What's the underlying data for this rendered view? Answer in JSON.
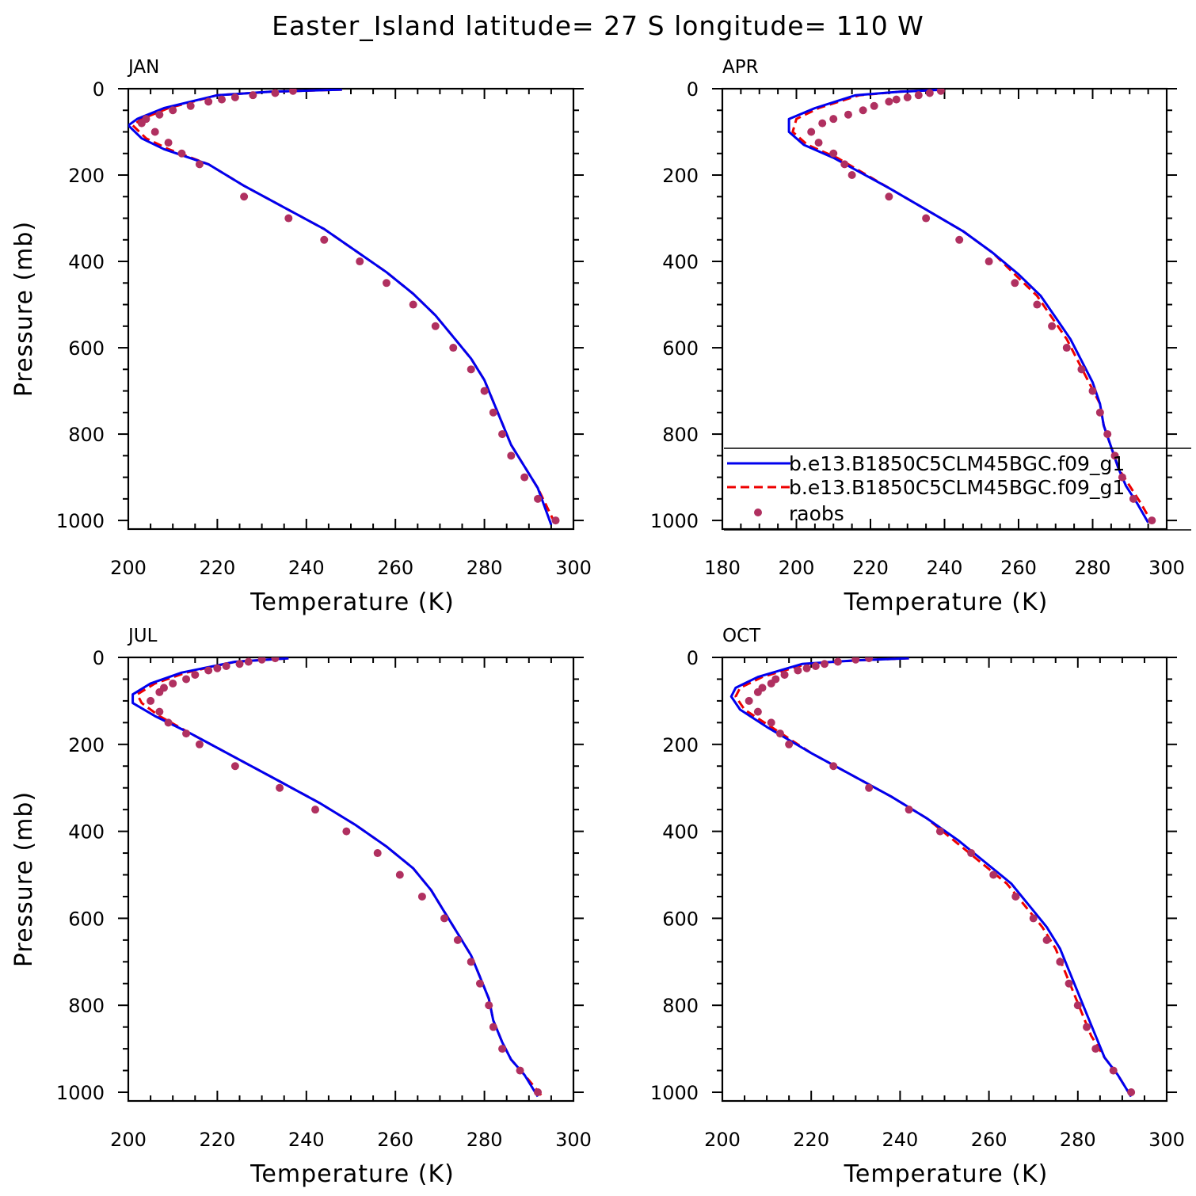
{
  "title": "Easter_Island  latitude= 27 S longitude= 110 W",
  "colors": {
    "model1": "#0000ee",
    "model2": "#ee0000",
    "raobs": "#b03060"
  },
  "legend": {
    "location": "APR panel, lower part",
    "entries": [
      {
        "label": "b.e13.B1850C5CLM45BGC.f09_g1",
        "style": "solid",
        "color": "#0000ee"
      },
      {
        "label": "b.e13.B1850C5CLM45BGC.f09_g1",
        "style": "dashed",
        "color": "#ee0000"
      },
      {
        "label": "raobs",
        "style": "marker",
        "color": "#b03060"
      }
    ]
  },
  "chart_data": [
    {
      "type": "line",
      "title": "JAN",
      "xlabel": "Temperature (K)",
      "ylabel": "Pressure (mb)",
      "xlim": [
        200,
        300
      ],
      "ylim": [
        1020,
        0
      ],
      "xticks": [
        200,
        220,
        240,
        260,
        280,
        300
      ],
      "yticks": [
        0,
        200,
        400,
        600,
        800,
        1000
      ],
      "series": [
        {
          "name": "b.e13.B1850C5CLM45BGC.f09_g1",
          "style": "solid",
          "x": [
            248,
            232,
            220,
            208,
            202,
            200,
            203,
            208,
            218,
            226,
            235,
            244,
            251,
            258,
            264,
            269,
            273,
            277,
            280,
            282,
            284,
            286,
            289,
            292,
            295
          ],
          "y": [
            2,
            7,
            15,
            45,
            70,
            85,
            115,
            140,
            175,
            225,
            275,
            325,
            375,
            425,
            475,
            525,
            575,
            625,
            675,
            725,
            775,
            825,
            875,
            925,
            1010
          ]
        },
        {
          "name": "b.e13.B1850C5CLM45BGC.f09_g1",
          "style": "dashed",
          "x": [
            248,
            232,
            220,
            209,
            203,
            201,
            204,
            209,
            218,
            226,
            235,
            244,
            251,
            258,
            264,
            269,
            273,
            277,
            280,
            282,
            284,
            286,
            289,
            292,
            296
          ],
          "y": [
            2,
            7,
            15,
            45,
            70,
            85,
            115,
            140,
            175,
            225,
            275,
            325,
            375,
            425,
            475,
            525,
            575,
            625,
            675,
            725,
            775,
            825,
            875,
            925,
            1010
          ]
        },
        {
          "name": "raobs",
          "style": "marker",
          "x": [
            237,
            233,
            228,
            224,
            221,
            218,
            214,
            210,
            207,
            204,
            203,
            206,
            209,
            212,
            216,
            226,
            236,
            244,
            252,
            258,
            264,
            269,
            273,
            277,
            280,
            282,
            284,
            286,
            289,
            292,
            296
          ],
          "y": [
            5,
            10,
            15,
            20,
            25,
            30,
            40,
            50,
            60,
            70,
            80,
            100,
            125,
            150,
            175,
            250,
            300,
            350,
            400,
            450,
            500,
            550,
            600,
            650,
            700,
            750,
            800,
            850,
            900,
            950,
            1000
          ]
        }
      ]
    },
    {
      "type": "line",
      "title": "APR",
      "xlabel": "Temperature (K)",
      "ylabel": "",
      "xlim": [
        180,
        300
      ],
      "ylim": [
        1020,
        0
      ],
      "xticks": [
        180,
        200,
        220,
        240,
        260,
        280,
        300
      ],
      "yticks": [
        0,
        200,
        400,
        600,
        800,
        1000
      ],
      "series": [
        {
          "name": "b.e13.B1850C5CLM45BGC.f09_g1",
          "style": "solid",
          "x": [
            240,
            228,
            216,
            205,
            198,
            198,
            202,
            210,
            225,
            235,
            245,
            253,
            260,
            266,
            270,
            274,
            277,
            280,
            282,
            283,
            285,
            287,
            289,
            292,
            295
          ],
          "y": [
            2,
            7,
            15,
            45,
            70,
            100,
            130,
            160,
            230,
            280,
            330,
            380,
            430,
            480,
            530,
            580,
            630,
            680,
            730,
            780,
            830,
            880,
            920,
            960,
            1005
          ]
        },
        {
          "name": "b.e13.B1850C5CLM45BGC.f09_g1",
          "style": "dashed",
          "x": [
            240,
            228,
            217,
            206,
            200,
            199,
            203,
            211,
            225,
            235,
            245,
            253,
            259,
            265,
            269,
            273,
            276,
            279,
            282,
            283,
            285,
            287,
            290,
            293,
            296
          ],
          "y": [
            2,
            7,
            15,
            45,
            70,
            100,
            130,
            160,
            230,
            280,
            330,
            380,
            430,
            480,
            530,
            580,
            630,
            680,
            730,
            780,
            830,
            880,
            920,
            960,
            1005
          ]
        },
        {
          "name": "raobs",
          "style": "marker",
          "x": [
            239,
            236,
            233,
            230,
            227,
            225,
            221,
            218,
            214,
            210,
            207,
            204,
            206,
            210,
            213,
            215,
            225,
            235,
            244,
            252,
            259,
            265,
            269,
            273,
            277,
            280,
            282,
            284,
            286,
            288,
            291,
            296
          ],
          "y": [
            5,
            10,
            15,
            20,
            25,
            30,
            40,
            50,
            60,
            70,
            80,
            100,
            125,
            150,
            175,
            200,
            250,
            300,
            350,
            400,
            450,
            500,
            550,
            600,
            650,
            700,
            750,
            800,
            850,
            900,
            950,
            1000
          ]
        }
      ]
    },
    {
      "type": "line",
      "title": "JUL",
      "xlabel": "Temperature (K)",
      "ylabel": "Pressure (mb)",
      "xlim": [
        200,
        300
      ],
      "ylim": [
        1020,
        0
      ],
      "xticks": [
        200,
        220,
        240,
        260,
        280,
        300
      ],
      "yticks": [
        0,
        200,
        400,
        600,
        800,
        1000
      ],
      "series": [
        {
          "name": "b.e13.B1850C5CLM45BGC.f09_g1",
          "style": "solid",
          "x": [
            236,
            224,
            212,
            205,
            201,
            201,
            206,
            214,
            224,
            234,
            243,
            251,
            258,
            264,
            268,
            271,
            274,
            277,
            279,
            281,
            282,
            284,
            286,
            289,
            292
          ],
          "y": [
            2,
            10,
            35,
            60,
            85,
            105,
            135,
            175,
            230,
            285,
            335,
            385,
            435,
            485,
            535,
            585,
            635,
            685,
            735,
            785,
            835,
            885,
            925,
            960,
            1010
          ]
        },
        {
          "name": "b.e13.B1850C5CLM45BGC.f09_g1",
          "style": "dashed",
          "x": [
            236,
            224,
            213,
            206,
            202,
            203,
            207,
            214,
            224,
            234,
            243,
            251,
            258,
            264,
            268,
            271,
            274,
            277,
            279,
            281,
            282,
            284,
            286,
            289,
            293
          ],
          "y": [
            2,
            10,
            35,
            60,
            85,
            105,
            135,
            175,
            230,
            285,
            335,
            385,
            435,
            485,
            535,
            585,
            635,
            685,
            735,
            785,
            835,
            885,
            925,
            960,
            1010
          ]
        },
        {
          "name": "raobs",
          "style": "marker",
          "x": [
            233,
            230,
            227,
            225,
            222,
            220,
            218,
            215,
            213,
            210,
            208,
            207,
            205,
            207,
            209,
            213,
            216,
            224,
            234,
            242,
            249,
            256,
            261,
            266,
            271,
            274,
            277,
            279,
            281,
            282,
            284,
            288,
            292
          ],
          "y": [
            2,
            5,
            10,
            15,
            20,
            25,
            30,
            40,
            50,
            60,
            70,
            80,
            100,
            125,
            150,
            175,
            200,
            250,
            300,
            350,
            400,
            450,
            500,
            550,
            600,
            650,
            700,
            750,
            800,
            850,
            900,
            950,
            1000
          ]
        }
      ]
    },
    {
      "type": "line",
      "title": "OCT",
      "xlabel": "Temperature (K)",
      "ylabel": "",
      "xlim": [
        200,
        300
      ],
      "ylim": [
        1020,
        0
      ],
      "xticks": [
        200,
        220,
        240,
        260,
        280,
        300
      ],
      "yticks": [
        0,
        200,
        400,
        600,
        800,
        1000
      ],
      "series": [
        {
          "name": "b.e13.B1850C5CLM45BGC.f09_g1",
          "style": "solid",
          "x": [
            242,
            230,
            218,
            208,
            203,
            202,
            204,
            210,
            220,
            229,
            238,
            246,
            253,
            259,
            265,
            269,
            273,
            276,
            278,
            280,
            282,
            284,
            286,
            289,
            292
          ],
          "y": [
            2,
            7,
            15,
            45,
            70,
            90,
            120,
            160,
            220,
            270,
            320,
            370,
            420,
            470,
            520,
            570,
            620,
            670,
            720,
            770,
            820,
            870,
            920,
            960,
            1010
          ]
        },
        {
          "name": "b.e13.B1850C5CLM45BGC.f09_g1",
          "style": "dashed",
          "x": [
            242,
            230,
            219,
            209,
            204,
            203,
            205,
            211,
            220,
            229,
            238,
            246,
            252,
            258,
            264,
            268,
            272,
            275,
            277,
            279,
            281,
            283,
            286,
            289,
            292
          ],
          "y": [
            2,
            7,
            15,
            45,
            70,
            90,
            120,
            160,
            220,
            270,
            320,
            370,
            420,
            470,
            520,
            570,
            620,
            670,
            720,
            770,
            820,
            870,
            920,
            960,
            1010
          ]
        },
        {
          "name": "raobs",
          "style": "marker",
          "x": [
            233,
            230,
            226,
            223,
            221,
            219,
            217,
            214,
            212,
            211,
            209,
            208,
            206,
            208,
            211,
            213,
            215,
            225,
            233,
            242,
            249,
            256,
            261,
            266,
            270,
            273,
            276,
            278,
            280,
            282,
            284,
            288,
            292
          ],
          "y": [
            2,
            5,
            10,
            15,
            20,
            25,
            30,
            40,
            50,
            60,
            70,
            80,
            100,
            125,
            150,
            175,
            200,
            250,
            300,
            350,
            400,
            450,
            500,
            550,
            600,
            650,
            700,
            750,
            800,
            850,
            900,
            950,
            1000
          ]
        }
      ]
    }
  ]
}
